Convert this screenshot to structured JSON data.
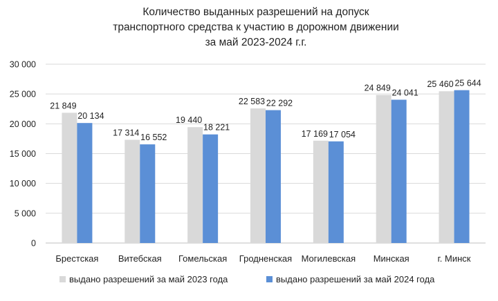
{
  "chart_data": {
    "type": "bar",
    "title_lines": [
      "Количество выданных разрешений на допуск",
      "транспортного средства к участию в дорожном движении",
      "за май 2023-2024 г.г."
    ],
    "categories": [
      "Брестская",
      "Витебская",
      "Гомельская",
      "Гродненская",
      "Могилевская",
      "Минская",
      "г. Минск"
    ],
    "series": [
      {
        "name": "выдано разрешений за май 2023 года",
        "color": "#d9d9d9",
        "values": [
          21849,
          17314,
          19440,
          22583,
          17169,
          24849,
          25460
        ],
        "labels": [
          "21 849",
          "17 314",
          "19 440",
          "22 583",
          "17 169",
          "24 849",
          "25 460"
        ]
      },
      {
        "name": "выдано разрешений за май 2024 года",
        "color": "#5b8fd6",
        "values": [
          20134,
          16552,
          18221,
          22292,
          17054,
          24041,
          25644
        ],
        "labels": [
          "20 134",
          "16 552",
          "18 221",
          "22 292",
          "17 054",
          "24 041",
          "25 644"
        ]
      }
    ],
    "yticks": [
      "0",
      "5 000",
      "10 000",
      "15 000",
      "20 000",
      "25 000",
      "30 000"
    ],
    "ylim": [
      0,
      30000
    ],
    "grid": true,
    "legend_position": "bottom"
  }
}
